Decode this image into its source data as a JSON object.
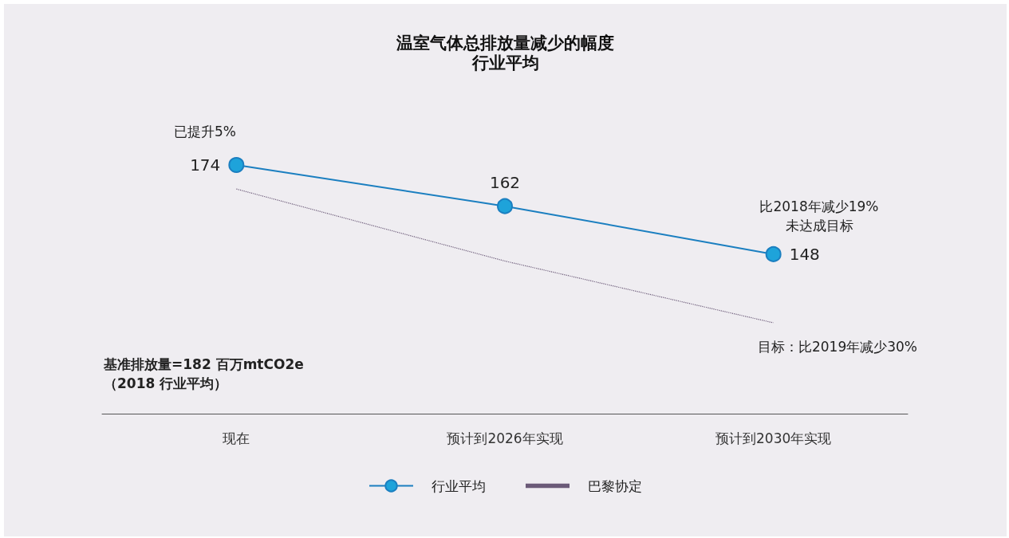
{
  "chart_data": {
    "type": "line",
    "title": "温室气体总排放量减少的幅度",
    "subtitle": "行业平均",
    "categories": [
      "现在",
      "预计到2026年实现",
      "预计到2030年实现"
    ],
    "series": [
      {
        "name": "行业平均",
        "color": "#1b7fc0",
        "values": [
          174,
          162,
          148
        ],
        "value_labels": [
          "174",
          "162",
          "148"
        ],
        "marker": "circle",
        "line_style": "solid"
      },
      {
        "name": "巴黎协定",
        "color": "#6b5a78",
        "values": [
          167,
          146,
          128
        ],
        "marker": "none",
        "line_style": "dotted"
      }
    ],
    "annotations": [
      "已提升5%",
      "比2018年减少19%\n未达成目标",
      "目标：比2019年减少30%",
      "基准排放量=182 百万mtCO2e\n（2018 行业平均）"
    ],
    "grid": false,
    "legend": "bottom",
    "tick_labels": "x"
  }
}
